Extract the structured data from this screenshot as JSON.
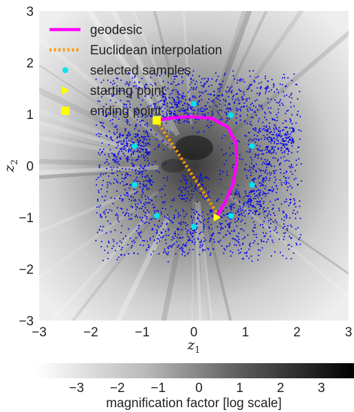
{
  "chart_data": {
    "type": "scatter",
    "xlabel_base": "z",
    "xlabel_sub": "1",
    "ylabel_base": "z",
    "ylabel_sub": "2",
    "xlim": [
      -3,
      3
    ],
    "ylim": [
      -3,
      3
    ],
    "xticks": [
      -3,
      -2,
      -1,
      0,
      1,
      2,
      3
    ],
    "yticks": [
      -3,
      -2,
      -1,
      0,
      1,
      2,
      3
    ],
    "xtick_labels": [
      "−3",
      "−2",
      "−1",
      "0",
      "1",
      "2",
      "3"
    ],
    "ytick_labels": [
      "−3",
      "−2",
      "−1",
      "0",
      "1",
      "2",
      "3"
    ],
    "background": "grayscale magnification-factor map",
    "legend": {
      "placement": "top-left",
      "entries": [
        {
          "label": "geodesic",
          "marker": "line",
          "color": "#ff00ff"
        },
        {
          "label": "Euclidean interpolation",
          "marker": "dotted-line",
          "color": "#ff9900"
        },
        {
          "label": "selected samples",
          "marker": "circle",
          "color": "#00e5ee"
        },
        {
          "label": "starting point",
          "marker": "triangle-right",
          "color": "#ffff00"
        },
        {
          "label": "ending point",
          "marker": "square",
          "color": "#ffff00"
        }
      ]
    },
    "series": [
      {
        "name": "geodesic",
        "kind": "line",
        "color": "#ff00ff",
        "points": [
          [
            -0.72,
            0.88
          ],
          [
            -0.4,
            0.93
          ],
          [
            -0.05,
            0.95
          ],
          [
            0.35,
            0.92
          ],
          [
            0.65,
            0.75
          ],
          [
            0.82,
            0.45
          ],
          [
            0.83,
            0.05
          ],
          [
            0.76,
            -0.35
          ],
          [
            0.62,
            -0.68
          ],
          [
            0.47,
            -0.95
          ]
        ]
      },
      {
        "name": "Euclidean interpolation",
        "kind": "dotted-line",
        "color": "#ff9900",
        "points": [
          [
            -0.72,
            0.88
          ],
          [
            0.47,
            -0.95
          ]
        ]
      },
      {
        "name": "selected samples",
        "kind": "points",
        "color": "#00e5ee",
        "points": [
          [
            -1.15,
            0.38
          ],
          [
            -1.15,
            -0.37
          ],
          [
            0.0,
            1.2
          ],
          [
            0.72,
            0.98
          ],
          [
            1.13,
            0.38
          ],
          [
            1.13,
            -0.37
          ],
          [
            -0.72,
            -0.97
          ],
          [
            0.0,
            -1.18
          ],
          [
            0.72,
            -0.97
          ]
        ]
      },
      {
        "name": "starting point",
        "kind": "marker",
        "color": "#ffff00",
        "points": [
          [
            0.45,
            -1.0
          ]
        ]
      },
      {
        "name": "ending point",
        "kind": "marker",
        "color": "#ffff00",
        "points": [
          [
            -0.72,
            0.88
          ]
        ]
      },
      {
        "name": "latent encodings",
        "kind": "cloud",
        "color": "#0000ee",
        "count": 2600
      }
    ],
    "colorbar": {
      "label": "magnification factor [log scale]",
      "range": [
        -4,
        3.8
      ],
      "ticks": [
        -3,
        -2,
        -1,
        0,
        1,
        2,
        3
      ],
      "tick_labels": [
        "−3",
        "−2",
        "−1",
        "0",
        "1",
        "2",
        "3"
      ],
      "colormap": "white-to-black"
    }
  }
}
